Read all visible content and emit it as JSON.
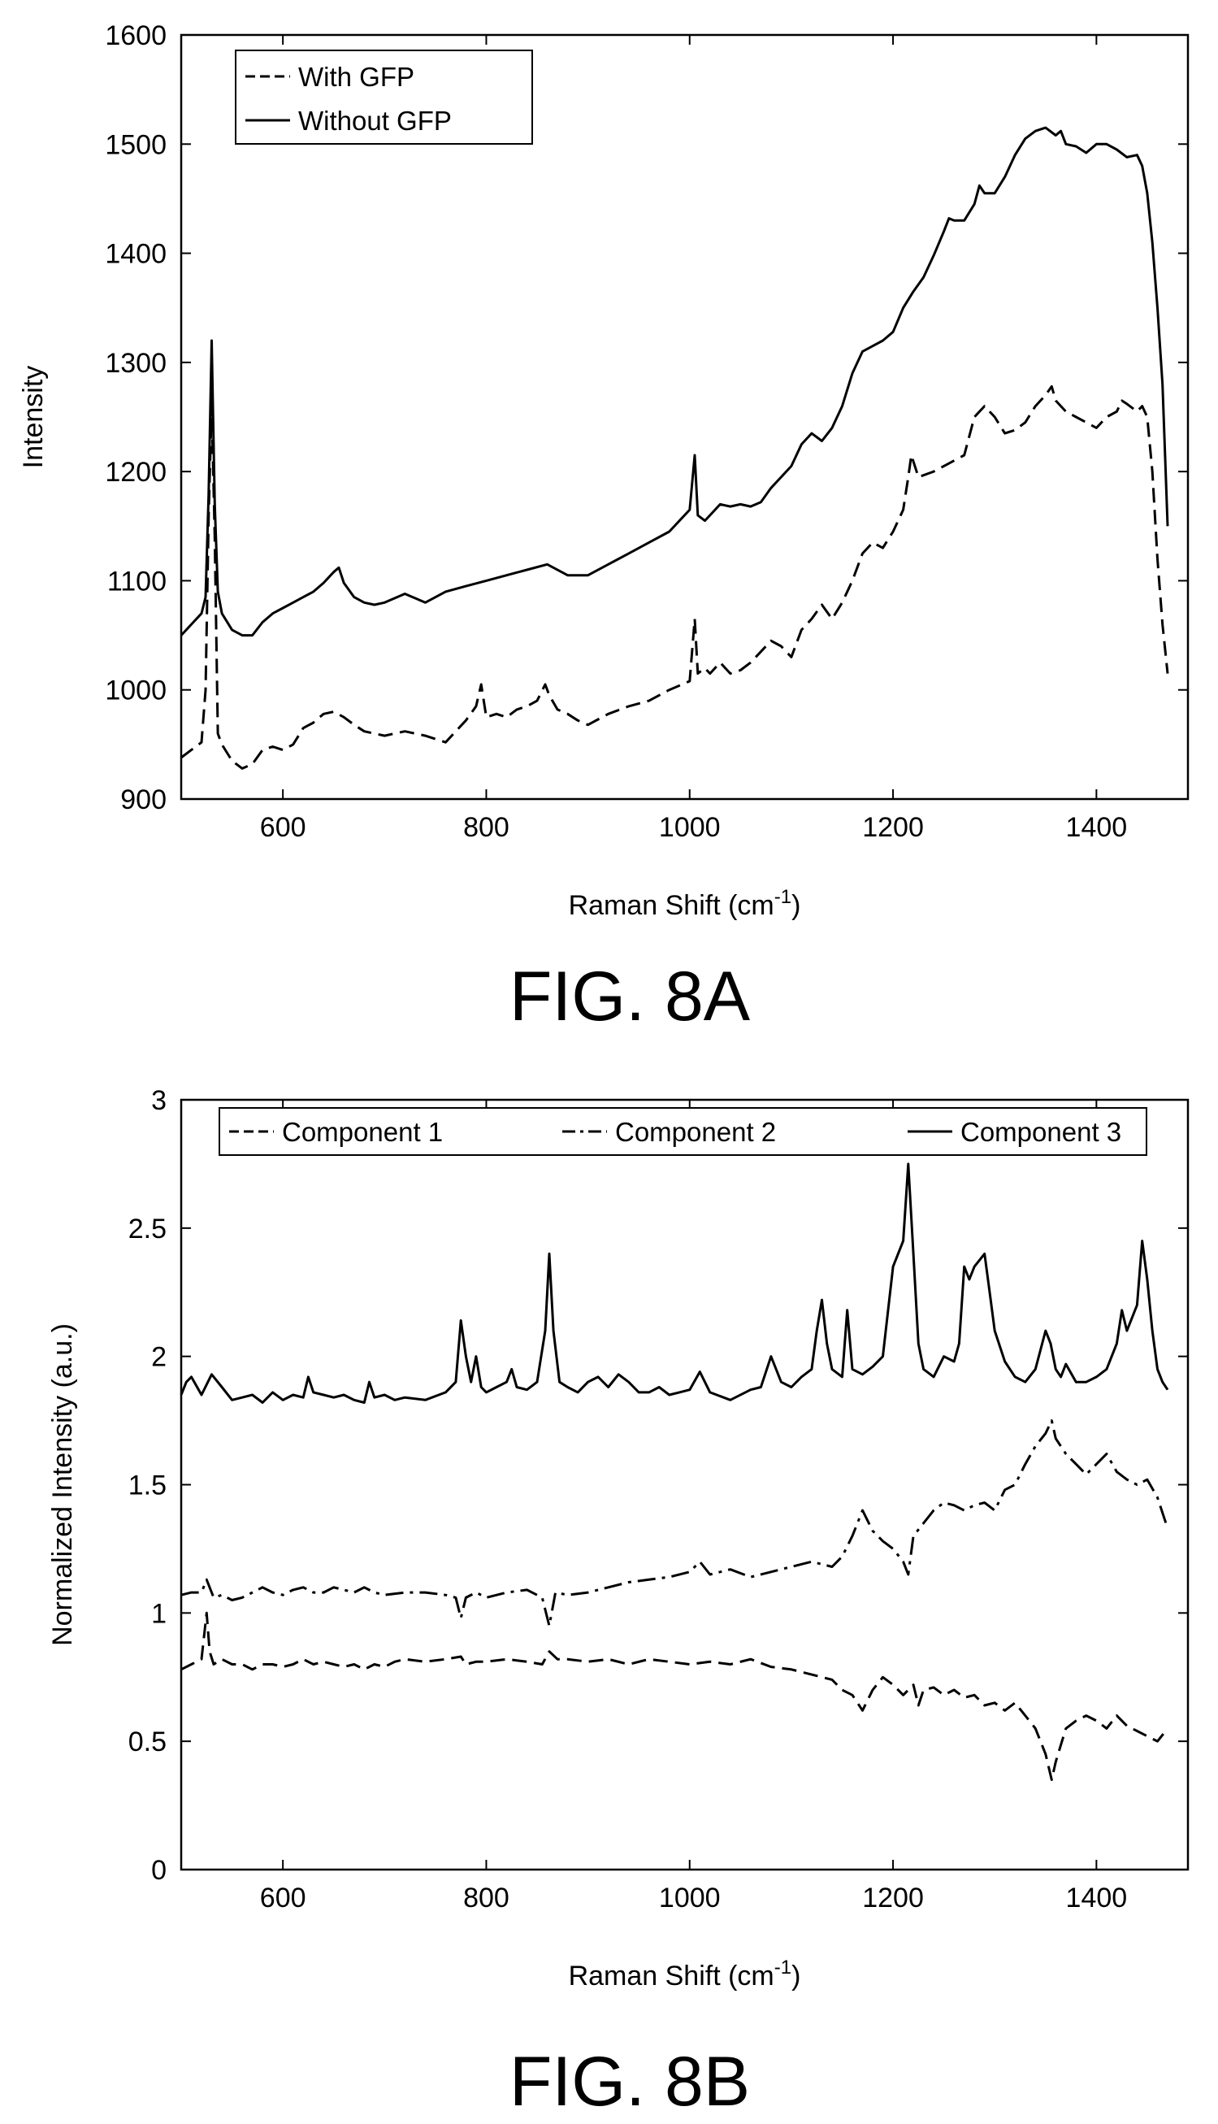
{
  "chart_data": [
    {
      "type": "line",
      "caption": "FIG. 8A",
      "xlabel": "Raman Shift (cm",
      "xlabel_sup": "-1",
      "xlabel_end": ")",
      "ylabel": "Intensity",
      "xlim": [
        500,
        1490
      ],
      "ylim": [
        900,
        1600
      ],
      "xticks": [
        600,
        800,
        1000,
        1200,
        1400
      ],
      "yticks": [
        900,
        1000,
        1100,
        1200,
        1300,
        1400,
        1500,
        1600
      ],
      "grid": false,
      "legend_position": "top-left",
      "series": [
        {
          "name": "With GFP",
          "style": "dashed",
          "x": [
            500,
            510,
            520,
            524,
            527,
            530,
            533,
            536,
            540,
            550,
            560,
            570,
            580,
            590,
            600,
            610,
            620,
            630,
            640,
            650,
            660,
            670,
            680,
            690,
            700,
            720,
            740,
            760,
            770,
            780,
            790,
            795,
            800,
            810,
            820,
            830,
            840,
            850,
            858,
            862,
            870,
            880,
            890,
            900,
            920,
            940,
            960,
            980,
            1000,
            1005,
            1008,
            1015,
            1020,
            1030,
            1040,
            1050,
            1060,
            1070,
            1080,
            1090,
            1100,
            1110,
            1120,
            1130,
            1140,
            1150,
            1160,
            1170,
            1180,
            1190,
            1200,
            1210,
            1215,
            1218,
            1225,
            1240,
            1250,
            1260,
            1270,
            1280,
            1290,
            1300,
            1310,
            1320,
            1330,
            1340,
            1350,
            1356,
            1360,
            1370,
            1380,
            1390,
            1400,
            1410,
            1420,
            1425,
            1430,
            1440,
            1445,
            1450,
            1455,
            1460,
            1465,
            1470
          ],
          "y": [
            938,
            945,
            952,
            1000,
            1160,
            1260,
            1140,
            960,
            950,
            935,
            928,
            932,
            945,
            948,
            945,
            950,
            965,
            970,
            978,
            980,
            975,
            968,
            962,
            960,
            958,
            962,
            958,
            952,
            962,
            972,
            985,
            1005,
            975,
            978,
            975,
            982,
            985,
            990,
            1005,
            995,
            982,
            978,
            972,
            968,
            978,
            985,
            990,
            1000,
            1008,
            1065,
            1015,
            1020,
            1015,
            1025,
            1015,
            1018,
            1025,
            1035,
            1045,
            1040,
            1030,
            1055,
            1065,
            1078,
            1065,
            1080,
            1100,
            1125,
            1135,
            1130,
            1145,
            1165,
            1195,
            1215,
            1195,
            1200,
            1205,
            1210,
            1215,
            1250,
            1260,
            1250,
            1235,
            1238,
            1245,
            1260,
            1270,
            1278,
            1265,
            1255,
            1250,
            1245,
            1240,
            1250,
            1255,
            1265,
            1262,
            1255,
            1260,
            1250,
            1200,
            1120,
            1060,
            1015
          ]
        },
        {
          "name": "Without GFP",
          "style": "solid",
          "x": [
            500,
            510,
            520,
            524,
            527,
            530,
            533,
            536,
            540,
            550,
            560,
            570,
            580,
            590,
            600,
            610,
            620,
            630,
            640,
            650,
            655,
            660,
            670,
            680,
            690,
            700,
            720,
            740,
            760,
            780,
            800,
            820,
            840,
            860,
            880,
            900,
            920,
            940,
            960,
            980,
            1000,
            1005,
            1008,
            1015,
            1020,
            1030,
            1040,
            1050,
            1060,
            1070,
            1080,
            1090,
            1100,
            1110,
            1120,
            1130,
            1140,
            1150,
            1160,
            1170,
            1180,
            1190,
            1200,
            1210,
            1220,
            1230,
            1240,
            1250,
            1255,
            1260,
            1270,
            1280,
            1285,
            1290,
            1300,
            1310,
            1320,
            1330,
            1340,
            1350,
            1360,
            1365,
            1370,
            1380,
            1390,
            1400,
            1410,
            1420,
            1430,
            1440,
            1445,
            1450,
            1455,
            1460,
            1465,
            1470
          ],
          "y": [
            1050,
            1060,
            1070,
            1085,
            1180,
            1320,
            1170,
            1090,
            1070,
            1055,
            1050,
            1050,
            1062,
            1070,
            1075,
            1080,
            1085,
            1090,
            1098,
            1108,
            1112,
            1098,
            1085,
            1080,
            1078,
            1080,
            1088,
            1080,
            1090,
            1095,
            1100,
            1105,
            1110,
            1115,
            1105,
            1105,
            1115,
            1125,
            1135,
            1145,
            1165,
            1215,
            1160,
            1155,
            1160,
            1170,
            1168,
            1170,
            1168,
            1172,
            1185,
            1195,
            1205,
            1225,
            1235,
            1228,
            1240,
            1260,
            1290,
            1310,
            1315,
            1320,
            1328,
            1350,
            1365,
            1378,
            1398,
            1420,
            1432,
            1430,
            1430,
            1445,
            1462,
            1455,
            1455,
            1470,
            1490,
            1505,
            1512,
            1515,
            1508,
            1512,
            1500,
            1498,
            1492,
            1500,
            1500,
            1495,
            1488,
            1490,
            1480,
            1455,
            1410,
            1350,
            1280,
            1150
          ]
        }
      ]
    },
    {
      "type": "line",
      "caption": "FIG. 8B",
      "xlabel": "Raman Shift (cm",
      "xlabel_sup": "-1",
      "xlabel_end": ")",
      "ylabel": "Normalized Intensity (a.u.)",
      "xlim": [
        500,
        1490
      ],
      "ylim": [
        0,
        3
      ],
      "xticks": [
        600,
        800,
        1000,
        1200,
        1400
      ],
      "yticks": [
        0,
        0.5,
        1,
        1.5,
        2,
        2.5,
        3
      ],
      "ytick_labels": [
        "0",
        "0.5",
        "1",
        "1.5",
        "2",
        "2.5",
        "3"
      ],
      "grid": false,
      "legend_position": "top",
      "series": [
        {
          "name": "Component 1",
          "style": "dashed",
          "x": [
            500,
            510,
            520,
            525,
            528,
            532,
            540,
            550,
            560,
            570,
            580,
            590,
            600,
            610,
            620,
            630,
            640,
            650,
            660,
            670,
            680,
            690,
            700,
            710,
            720,
            740,
            760,
            775,
            780,
            790,
            800,
            820,
            840,
            855,
            862,
            870,
            880,
            900,
            920,
            940,
            960,
            980,
            1000,
            1020,
            1040,
            1060,
            1080,
            1100,
            1120,
            1140,
            1150,
            1160,
            1170,
            1180,
            1190,
            1200,
            1210,
            1220,
            1225,
            1230,
            1240,
            1250,
            1260,
            1270,
            1280,
            1290,
            1300,
            1310,
            1320,
            1330,
            1340,
            1350,
            1356,
            1360,
            1370,
            1380,
            1390,
            1400,
            1410,
            1420,
            1430,
            1440,
            1450,
            1460,
            1470
          ],
          "y": [
            0.78,
            0.8,
            0.82,
            1.0,
            0.85,
            0.8,
            0.82,
            0.8,
            0.8,
            0.78,
            0.8,
            0.8,
            0.79,
            0.8,
            0.82,
            0.8,
            0.81,
            0.8,
            0.79,
            0.8,
            0.78,
            0.8,
            0.79,
            0.81,
            0.82,
            0.81,
            0.82,
            0.83,
            0.8,
            0.81,
            0.81,
            0.82,
            0.81,
            0.8,
            0.85,
            0.82,
            0.82,
            0.81,
            0.82,
            0.8,
            0.82,
            0.81,
            0.8,
            0.81,
            0.8,
            0.82,
            0.79,
            0.78,
            0.76,
            0.74,
            0.7,
            0.68,
            0.62,
            0.7,
            0.75,
            0.72,
            0.68,
            0.72,
            0.64,
            0.7,
            0.71,
            0.68,
            0.7,
            0.67,
            0.68,
            0.64,
            0.65,
            0.62,
            0.65,
            0.6,
            0.55,
            0.45,
            0.35,
            0.42,
            0.55,
            0.58,
            0.6,
            0.58,
            0.55,
            0.6,
            0.56,
            0.54,
            0.52,
            0.5,
            0.55
          ]
        },
        {
          "name": "Component 2",
          "style": "dashdot",
          "x": [
            500,
            510,
            520,
            525,
            528,
            532,
            540,
            550,
            560,
            570,
            580,
            590,
            600,
            610,
            620,
            630,
            640,
            650,
            660,
            670,
            680,
            690,
            700,
            720,
            740,
            760,
            770,
            775,
            780,
            790,
            800,
            820,
            840,
            855,
            862,
            868,
            880,
            900,
            920,
            940,
            960,
            980,
            1000,
            1010,
            1020,
            1040,
            1060,
            1080,
            1100,
            1120,
            1140,
            1150,
            1160,
            1170,
            1180,
            1190,
            1200,
            1210,
            1215,
            1220,
            1230,
            1240,
            1250,
            1260,
            1270,
            1280,
            1290,
            1300,
            1310,
            1320,
            1330,
            1340,
            1350,
            1356,
            1360,
            1370,
            1380,
            1390,
            1400,
            1410,
            1420,
            1430,
            1440,
            1450,
            1460,
            1470
          ],
          "y": [
            1.07,
            1.08,
            1.08,
            1.13,
            1.1,
            1.06,
            1.07,
            1.05,
            1.06,
            1.08,
            1.1,
            1.08,
            1.07,
            1.09,
            1.1,
            1.08,
            1.08,
            1.1,
            1.09,
            1.08,
            1.1,
            1.08,
            1.07,
            1.08,
            1.08,
            1.07,
            1.06,
            0.98,
            1.06,
            1.08,
            1.06,
            1.08,
            1.09,
            1.06,
            0.95,
            1.08,
            1.07,
            1.08,
            1.1,
            1.12,
            1.13,
            1.14,
            1.16,
            1.2,
            1.15,
            1.17,
            1.14,
            1.16,
            1.18,
            1.2,
            1.18,
            1.22,
            1.3,
            1.4,
            1.32,
            1.28,
            1.25,
            1.2,
            1.15,
            1.3,
            1.35,
            1.4,
            1.43,
            1.42,
            1.4,
            1.42,
            1.43,
            1.4,
            1.48,
            1.5,
            1.58,
            1.65,
            1.7,
            1.75,
            1.68,
            1.62,
            1.58,
            1.54,
            1.58,
            1.62,
            1.55,
            1.52,
            1.5,
            1.52,
            1.45,
            1.33
          ]
        },
        {
          "name": "Component 3",
          "style": "solid",
          "x": [
            500,
            505,
            510,
            520,
            530,
            540,
            550,
            560,
            570,
            580,
            590,
            600,
            610,
            620,
            625,
            630,
            640,
            650,
            660,
            670,
            680,
            685,
            690,
            700,
            710,
            720,
            740,
            760,
            770,
            775,
            780,
            785,
            790,
            795,
            800,
            810,
            820,
            825,
            830,
            840,
            850,
            858,
            862,
            866,
            872,
            880,
            890,
            900,
            910,
            920,
            930,
            940,
            950,
            960,
            970,
            980,
            990,
            1000,
            1010,
            1020,
            1040,
            1060,
            1070,
            1080,
            1090,
            1100,
            1110,
            1120,
            1125,
            1130,
            1135,
            1140,
            1150,
            1155,
            1160,
            1170,
            1180,
            1190,
            1200,
            1210,
            1215,
            1220,
            1225,
            1230,
            1240,
            1250,
            1260,
            1265,
            1270,
            1275,
            1280,
            1290,
            1295,
            1300,
            1310,
            1320,
            1330,
            1340,
            1350,
            1355,
            1360,
            1365,
            1370,
            1380,
            1390,
            1400,
            1410,
            1420,
            1425,
            1430,
            1440,
            1445,
            1450,
            1455,
            1460,
            1465,
            1470
          ],
          "y": [
            1.85,
            1.9,
            1.92,
            1.85,
            1.93,
            1.88,
            1.83,
            1.84,
            1.85,
            1.82,
            1.86,
            1.83,
            1.85,
            1.84,
            1.92,
            1.86,
            1.85,
            1.84,
            1.85,
            1.83,
            1.82,
            1.9,
            1.84,
            1.85,
            1.83,
            1.84,
            1.83,
            1.86,
            1.9,
            2.14,
            2.0,
            1.9,
            2.0,
            1.88,
            1.86,
            1.88,
            1.9,
            1.95,
            1.88,
            1.87,
            1.9,
            2.1,
            2.4,
            2.1,
            1.9,
            1.88,
            1.86,
            1.9,
            1.92,
            1.88,
            1.93,
            1.9,
            1.86,
            1.86,
            1.88,
            1.85,
            1.86,
            1.87,
            1.94,
            1.86,
            1.83,
            1.87,
            1.88,
            2.0,
            1.9,
            1.88,
            1.92,
            1.95,
            2.1,
            2.22,
            2.05,
            1.95,
            1.92,
            2.18,
            1.95,
            1.93,
            1.96,
            2.0,
            2.35,
            2.45,
            2.75,
            2.4,
            2.05,
            1.95,
            1.92,
            2.0,
            1.98,
            2.05,
            2.35,
            2.3,
            2.35,
            2.4,
            2.25,
            2.1,
            1.98,
            1.92,
            1.9,
            1.95,
            2.1,
            2.05,
            1.95,
            1.92,
            1.97,
            1.9,
            1.9,
            1.92,
            1.95,
            2.05,
            2.18,
            2.1,
            2.2,
            2.45,
            2.3,
            2.1,
            1.95,
            1.9,
            1.87
          ]
        }
      ]
    }
  ]
}
